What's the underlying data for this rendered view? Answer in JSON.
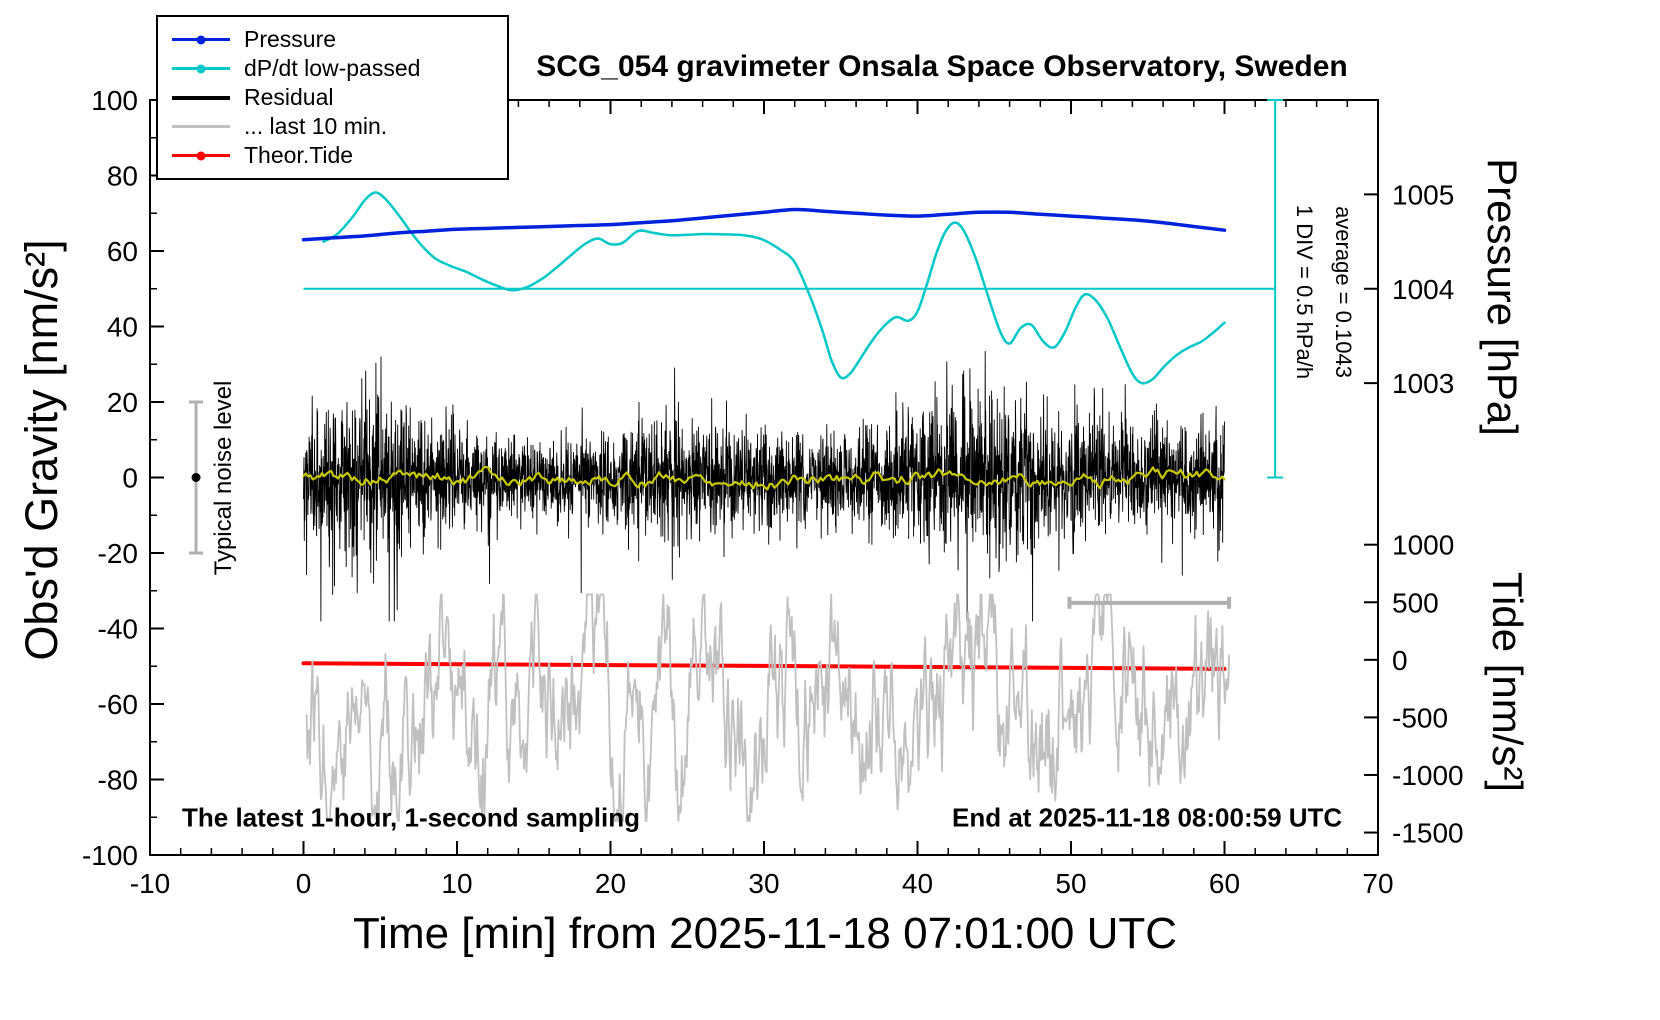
{
  "title": "SCG_054 gravimeter Onsala Space Observatory, Sweden",
  "footer_left": "The latest 1-hour, 1-second sampling",
  "footer_right": "End at 2025-11-18 08:00:59 UTC",
  "axes": {
    "x_label": "Time [min] from 2025-11-18 07:01:00 UTC",
    "y_left_label": "Obs'd Gravity [nm/s²]",
    "pressure_label": "Pressure [hPa]",
    "tide_label": "Tide [nm/s²]"
  },
  "legend": {
    "items": [
      {
        "label": "Pressure",
        "color": "#0022dd",
        "marker": "dot"
      },
      {
        "label": "dP/dt low-passed",
        "color": "#00c8c8",
        "marker": "dot"
      },
      {
        "label": "Residual",
        "color": "#000000",
        "marker": "line"
      },
      {
        "label": "... last 10 min.",
        "color": "#c0c0c0",
        "marker": "line"
      },
      {
        "label": "Theor.Tide",
        "color": "#ff0000",
        "marker": "dot"
      }
    ]
  },
  "annotations": {
    "noise_bar_label": "Typical noise level",
    "div_label": "1 DIV = 0.5 hPa/h",
    "average_label": "average = 0.1043"
  },
  "chart_data": {
    "type": "line",
    "title": "SCG_054 gravimeter Onsala Space Observatory, Sweden",
    "xlabel": "Time [min] from 2025-11-18 07:01:00 UTC",
    "ylabel_left": "Obs'd Gravity [nm/s²]",
    "ylabel_right_pressure": "Pressure [hPa]",
    "ylabel_right_tide": "Tide [nm/s²]",
    "x_range": [
      -10,
      70
    ],
    "y_range_gravity": [
      -100,
      100
    ],
    "x_ticks": [
      -10,
      0,
      10,
      20,
      30,
      40,
      50,
      60,
      70
    ],
    "x_minor_step": 2,
    "y_ticks_gravity": [
      -100,
      -80,
      -60,
      -40,
      -20,
      0,
      20,
      40,
      60,
      80,
      100
    ],
    "y_minor_step": 10,
    "pressure_axis": {
      "ticks_hpa": [
        1005,
        1004,
        1003
      ],
      "ref_hpa": 1004,
      "ref_gravity": 50,
      "gravity_per_hpa": 25
    },
    "tide_axis": {
      "ticks_nms2": [
        1000,
        500,
        0,
        -500,
        -1000,
        -1500
      ],
      "gravity_at_zero": -48.3,
      "gravity_per_unit": 0.0305
    },
    "reference_line": {
      "gravity": 50,
      "x_start": 0,
      "x_end": 63.3,
      "color": "#00c8c8"
    },
    "div_scale": {
      "x": 63.3,
      "gravity_top": 100,
      "gravity_bottom": 0,
      "color": "#00c8c8"
    },
    "noise_level_bar": {
      "x": -7,
      "gravity_min": -20,
      "gravity_max": 20,
      "dot_gravity": 0,
      "color": "#b0b0b0"
    },
    "window_bar": {
      "x_start": 49.9,
      "x_end": 60.3,
      "gravity": -33.2,
      "color": "#b0b0b0"
    },
    "series": {
      "pressure": {
        "color": "#0022dd",
        "unit": "hPa",
        "x_min": [
          0,
          2,
          4,
          6,
          8,
          10,
          12,
          14,
          16,
          18,
          20,
          22,
          24,
          26,
          28,
          30,
          32,
          34,
          36,
          38,
          40,
          42,
          44,
          46,
          48,
          50,
          52,
          54,
          56,
          58,
          60
        ],
        "values_hpa": [
          1004.52,
          1004.54,
          1004.56,
          1004.59,
          1004.61,
          1004.63,
          1004.64,
          1004.65,
          1004.66,
          1004.67,
          1004.68,
          1004.7,
          1004.72,
          1004.75,
          1004.78,
          1004.81,
          1004.84,
          1004.82,
          1004.8,
          1004.78,
          1004.77,
          1004.79,
          1004.81,
          1004.81,
          1004.79,
          1004.77,
          1004.75,
          1004.73,
          1004.7,
          1004.66,
          1004.62
        ]
      },
      "dpdt_lowpassed": {
        "color": "#00c8c8",
        "x_min": [
          1.3,
          2.2,
          3.2,
          4.0,
          4.7,
          5.4,
          6.2,
          7.0,
          7.8,
          8.6,
          9.6,
          10.6,
          11.6,
          12.6,
          13.6,
          14.6,
          15.6,
          16.6,
          17.6,
          18.4,
          19.2,
          20.0,
          20.8,
          21.8,
          22.8,
          23.8,
          25.0,
          26.2,
          27.4,
          28.6,
          29.8,
          31.0,
          32.0,
          33.0,
          33.8,
          34.4,
          35.0,
          35.6,
          36.2,
          37.0,
          37.8,
          38.6,
          39.4,
          40.0,
          40.6,
          41.2,
          41.8,
          42.4,
          43.0,
          43.8,
          44.6,
          45.4,
          46.0,
          46.7,
          47.4,
          48.2,
          48.9,
          49.6,
          50.3,
          50.9,
          51.6,
          52.4,
          53.2,
          54.0,
          54.6,
          55.3,
          56.1,
          56.9,
          57.7,
          58.5,
          59.3,
          60.0
        ],
        "y_gravity": [
          62.5,
          64.5,
          69,
          73.5,
          75.5,
          73.5,
          69.5,
          65,
          61,
          58,
          56,
          54.5,
          52.5,
          50.8,
          49.6,
          50.5,
          52.8,
          56,
          59.5,
          62,
          63.3,
          61.8,
          62.2,
          65.3,
          64.8,
          64.2,
          64.3,
          64.5,
          64.4,
          64.2,
          63.2,
          60.5,
          57,
          48,
          39,
          31,
          26.5,
          27.5,
          31,
          36,
          40,
          42.5,
          41.5,
          44,
          51,
          59,
          65,
          67.5,
          65.5,
          58,
          48,
          38.5,
          35.5,
          39.5,
          40.5,
          36,
          34.5,
          38.5,
          45,
          48.5,
          47,
          42,
          34.5,
          27.5,
          25,
          26,
          29.5,
          32.5,
          34.5,
          36,
          38.5,
          41
        ]
      },
      "residual": {
        "color": "#000000",
        "noise": {
          "x_start": 0,
          "x_end": 60,
          "points": 3600,
          "std": 7.5,
          "spike_prob": 0.025,
          "spike_factor": 2.6,
          "clip": 38,
          "seed": 1234
        }
      },
      "residual_mean": {
        "color": "#c8c800",
        "smooth": {
          "x_start": 0,
          "x_end": 60,
          "points": 400,
          "base": 0,
          "phi": 0.9,
          "step": 1.2,
          "scale": 2.0,
          "seed": 5
        }
      },
      "theor_tide": {
        "color": "#ff0000",
        "unit": "nm/s2 (tide axis)",
        "x_min": [
          0,
          10,
          20,
          30,
          40,
          50,
          60
        ],
        "values_tide_nms2": [
          -30,
          -38,
          -46,
          -53,
          -61,
          -70,
          -79
        ]
      },
      "last_10_min": {
        "color": "#c0c0c0",
        "noise": {
          "x_start": 0.2,
          "x_end": 60.3,
          "points": 1100,
          "center": -61,
          "phi": 0.86,
          "step": 16,
          "scale": 1.6,
          "clip_min": -91,
          "clip_max": -31,
          "seed": 77
        }
      }
    }
  }
}
